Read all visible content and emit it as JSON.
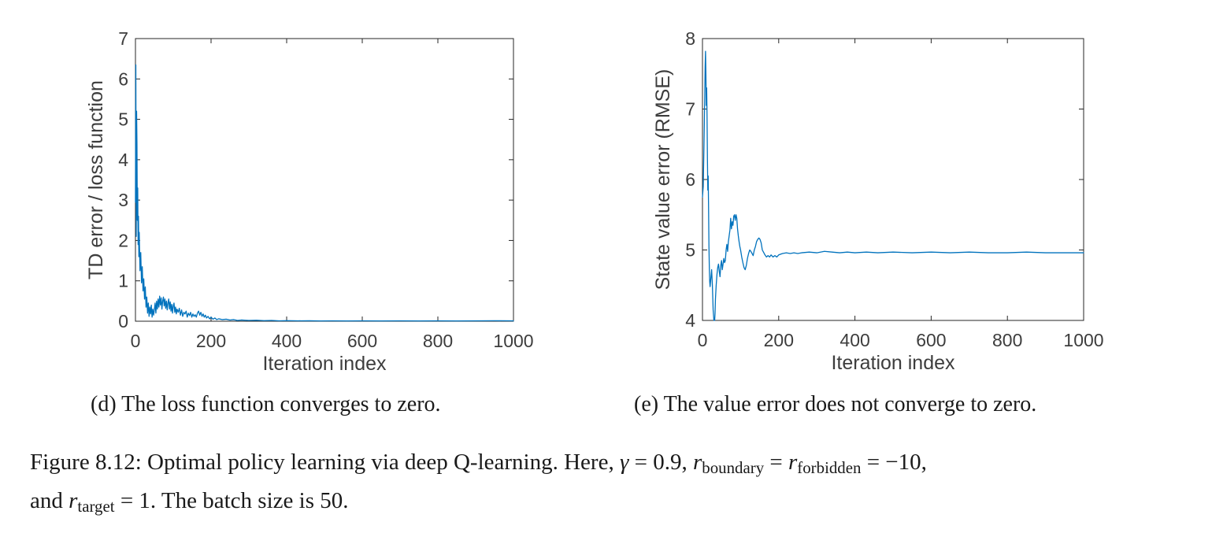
{
  "page": {
    "background": "#ffffff"
  },
  "captions": {
    "sub_d": "(d) The loss function converges to zero.",
    "sub_e": "(e) The value error does not converge to zero.",
    "figure_lines": [
      [
        {
          "t": "Figure 8.12: Optimal policy learning via deep Q-learning. Here, ",
          "s": "plain"
        },
        {
          "t": "γ",
          "s": "italic"
        },
        {
          "t": " = 0.9, ",
          "s": "plain"
        },
        {
          "t": "r",
          "s": "italic"
        },
        {
          "t": "boundary",
          "s": "sub"
        },
        {
          "t": " = ",
          "s": "plain"
        },
        {
          "t": "r",
          "s": "italic"
        },
        {
          "t": "forbidden",
          "s": "sub"
        },
        {
          "t": " = −10,",
          "s": "plain"
        }
      ],
      [
        {
          "t": "and ",
          "s": "plain"
        },
        {
          "t": "r",
          "s": "italic"
        },
        {
          "t": "target",
          "s": "sub"
        },
        {
          "t": " = 1. The batch size is 50.",
          "s": "plain"
        }
      ]
    ]
  },
  "chart_data": [
    {
      "type": "line",
      "name": "td-error-loss",
      "title": "",
      "xlabel": "Iteration index",
      "ylabel": "TD error / loss function",
      "xlim": [
        0,
        1000
      ],
      "ylim": [
        0,
        7
      ],
      "xticks": [
        0,
        200,
        400,
        600,
        800,
        1000
      ],
      "yticks": [
        0,
        1,
        2,
        3,
        4,
        5,
        6,
        7
      ],
      "grid": false,
      "legend": "none",
      "line_color": "#0072BD",
      "axis_color": "#262626",
      "tick_label_color": "#3d3d3d",
      "series": [
        {
          "name": "TD error / loss",
          "x": [
            0,
            1,
            2,
            3,
            4,
            5,
            6,
            7,
            8,
            9,
            10,
            12,
            14,
            16,
            18,
            20,
            22,
            24,
            26,
            28,
            30,
            32,
            34,
            36,
            38,
            40,
            42,
            44,
            46,
            48,
            50,
            52,
            54,
            56,
            58,
            60,
            62,
            64,
            66,
            68,
            70,
            72,
            74,
            76,
            78,
            80,
            82,
            84,
            86,
            88,
            90,
            92,
            94,
            96,
            98,
            100,
            102,
            104,
            106,
            108,
            110,
            113,
            116,
            119,
            122,
            125,
            128,
            131,
            134,
            137,
            140,
            143,
            146,
            149,
            152,
            155,
            158,
            161,
            164,
            167,
            170,
            173,
            176,
            179,
            182,
            185,
            188,
            192,
            196,
            200,
            205,
            210,
            215,
            220,
            225,
            230,
            240,
            250,
            260,
            270,
            280,
            290,
            300,
            320,
            340,
            360,
            380,
            400,
            430,
            460,
            490,
            520,
            560,
            600,
            650,
            700,
            750,
            800,
            850,
            900,
            950,
            1000
          ],
          "y": [
            2.95,
            6.35,
            2.1,
            5.2,
            4.4,
            2.5,
            3.3,
            1.9,
            2.6,
            1.6,
            2.2,
            1.25,
            1.7,
            0.95,
            1.35,
            0.75,
            1.05,
            0.55,
            0.85,
            0.35,
            0.6,
            0.2,
            0.45,
            0.12,
            0.35,
            0.18,
            0.4,
            0.1,
            0.3,
            0.15,
            0.28,
            0.45,
            0.2,
            0.5,
            0.3,
            0.55,
            0.35,
            0.62,
            0.4,
            0.58,
            0.3,
            0.5,
            0.6,
            0.38,
            0.55,
            0.32,
            0.5,
            0.28,
            0.45,
            0.55,
            0.3,
            0.48,
            0.25,
            0.42,
            0.2,
            0.38,
            0.45,
            0.22,
            0.35,
            0.18,
            0.3,
            0.22,
            0.32,
            0.15,
            0.28,
            0.12,
            0.22,
            0.18,
            0.25,
            0.1,
            0.2,
            0.14,
            0.22,
            0.1,
            0.18,
            0.12,
            0.16,
            0.1,
            0.2,
            0.25,
            0.15,
            0.22,
            0.12,
            0.18,
            0.1,
            0.15,
            0.08,
            0.12,
            0.06,
            0.1,
            0.05,
            0.08,
            0.04,
            0.06,
            0.05,
            0.04,
            0.05,
            0.03,
            0.04,
            0.02,
            0.03,
            0.025,
            0.02,
            0.025,
            0.015,
            0.02,
            0.01,
            0.015,
            0.01,
            0.012,
            0.008,
            0.01,
            0.008,
            0.01,
            0.008,
            0.01,
            0.008,
            0.01,
            0.008,
            0.01,
            0.012,
            0.01
          ]
        }
      ]
    },
    {
      "type": "line",
      "name": "state-value-error",
      "title": "",
      "xlabel": "Iteration index",
      "ylabel": "State value error (RMSE)",
      "xlim": [
        0,
        1000
      ],
      "ylim": [
        4,
        8
      ],
      "xticks": [
        0,
        200,
        400,
        600,
        800,
        1000
      ],
      "yticks": [
        4,
        5,
        6,
        7,
        8
      ],
      "grid": false,
      "legend": "none",
      "line_color": "#0072BD",
      "axis_color": "#262626",
      "tick_label_color": "#3d3d3d",
      "series": [
        {
          "name": "State value RMSE",
          "x": [
            0,
            2,
            4,
            6,
            7,
            8,
            9,
            10,
            11,
            12,
            13,
            14,
            15,
            16,
            17,
            18,
            19,
            20,
            22,
            24,
            26,
            28,
            30,
            32,
            33,
            34,
            36,
            38,
            40,
            42,
            44,
            46,
            48,
            50,
            52,
            54,
            56,
            58,
            60,
            62,
            64,
            66,
            68,
            70,
            72,
            74,
            76,
            78,
            80,
            82,
            84,
            86,
            88,
            90,
            92,
            94,
            96,
            98,
            100,
            103,
            106,
            109,
            112,
            115,
            118,
            121,
            124,
            127,
            130,
            133,
            136,
            139,
            142,
            145,
            148,
            151,
            154,
            157,
            160,
            164,
            168,
            172,
            176,
            180,
            185,
            190,
            195,
            200,
            210,
            220,
            230,
            240,
            250,
            260,
            280,
            300,
            320,
            340,
            360,
            380,
            400,
            430,
            460,
            500,
            550,
            600,
            650,
            700,
            750,
            800,
            850,
            900,
            950,
            1000
          ],
          "y": [
            5.75,
            5.9,
            6.5,
            7.2,
            7.6,
            7.82,
            7.5,
            7.05,
            7.3,
            6.9,
            6.3,
            5.85,
            6.05,
            5.6,
            5.05,
            4.75,
            4.55,
            4.48,
            4.6,
            4.72,
            4.5,
            4.15,
            4.0,
            3.97,
            4.1,
            4.3,
            4.5,
            4.65,
            4.75,
            4.8,
            4.7,
            4.62,
            4.78,
            4.85,
            4.72,
            4.8,
            4.88,
            4.82,
            4.85,
            5.0,
            5.08,
            4.98,
            5.12,
            5.2,
            5.28,
            5.45,
            5.3,
            5.4,
            5.35,
            5.48,
            5.5,
            5.42,
            5.5,
            5.45,
            5.3,
            5.2,
            5.12,
            5.05,
            5.0,
            4.9,
            4.82,
            4.75,
            4.72,
            4.78,
            4.88,
            4.95,
            5.0,
            4.98,
            4.95,
            4.92,
            5.0,
            5.05,
            5.12,
            5.15,
            5.17,
            5.15,
            5.1,
            5.0,
            4.97,
            4.93,
            4.9,
            4.92,
            4.9,
            4.93,
            4.9,
            4.92,
            4.9,
            4.93,
            4.95,
            4.96,
            4.95,
            4.96,
            4.95,
            4.96,
            4.97,
            4.96,
            4.98,
            4.97,
            4.96,
            4.97,
            4.96,
            4.97,
            4.96,
            4.97,
            4.96,
            4.97,
            4.96,
            4.97,
            4.96,
            4.96,
            4.97,
            4.96,
            4.96,
            4.96
          ]
        }
      ]
    }
  ]
}
